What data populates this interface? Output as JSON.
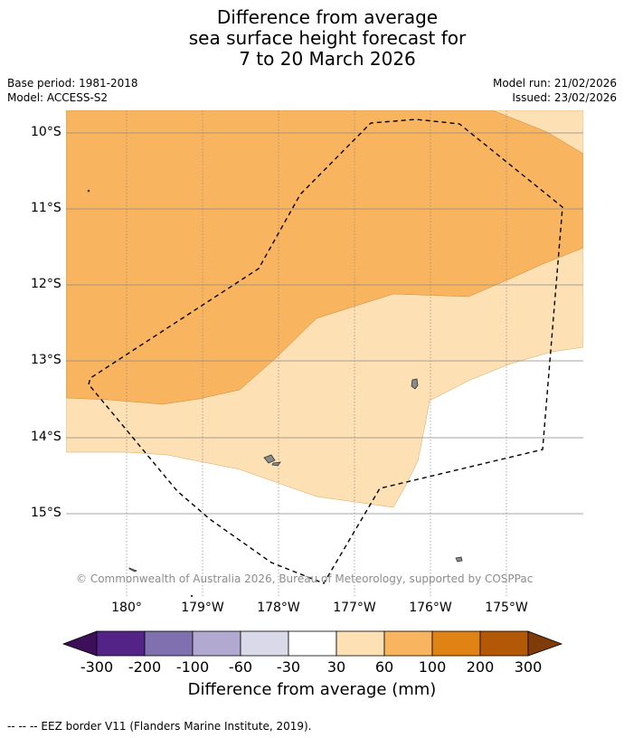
{
  "title": {
    "line1": "Difference from average",
    "line2": "sea surface height forecast for",
    "line3": "7 to 20 March 2026"
  },
  "meta": {
    "base_period": "Base period: 1981-2018",
    "model": "Model: ACCESS-S2",
    "model_run": "Model run: 21/02/2026",
    "issued": "Issued: 23/02/2026"
  },
  "map": {
    "lat_labels": [
      "10°S",
      "11°S",
      "12°S",
      "13°S",
      "14°S",
      "15°S"
    ],
    "lon_labels": [
      "180°",
      "179°W",
      "178°W",
      "177°W",
      "176°W",
      "175°W"
    ],
    "credit": "© Commonwealth of Australia 2026, Bureau of Meteorology, supported by COSPPac"
  },
  "colorbar": {
    "title": "Difference from average (mm)",
    "ticks": [
      "-300",
      "-200",
      "-100",
      "-60",
      "-30",
      "30",
      "60",
      "100",
      "200",
      "300"
    ],
    "colors": [
      "#3d0f5a",
      "#542388",
      "#8170b0",
      "#b1a9d0",
      "#d9d9ea",
      "#ffffff",
      "#fde0b4",
      "#f9b460",
      "#e08214",
      "#b35806",
      "#7f3b08"
    ]
  },
  "footnote": "--  --  -- EEZ border V11 (Flanders Marine Institute, 2019)."
}
